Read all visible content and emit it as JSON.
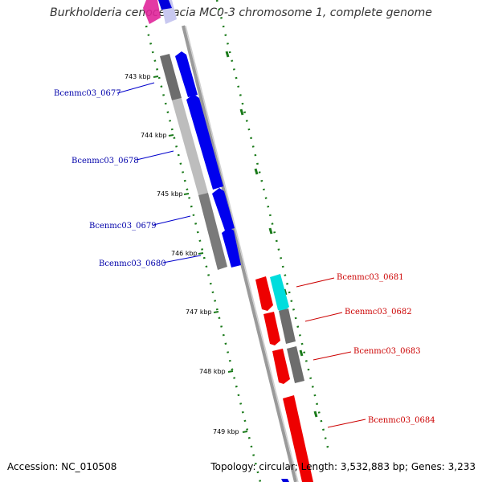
{
  "title": "Burkholderia cenocepacia MC0-3 chromosome 1, complete genome",
  "footer": {
    "accession": "Accession: NC_010508",
    "summary": "Topology: circular; Length: 3,532,883 bp; Genes: 3,233"
  },
  "colors": {
    "forward_strand": "#0000ee",
    "reverse_strand": "#ee0000",
    "axis": "#888888",
    "tick": "#1a7a1a",
    "forward_label": "#0000aa",
    "reverse_label": "#cc0000"
  },
  "ticks": [
    "743 kbp",
    "744 kbp",
    "745 kbp",
    "746 kbp",
    "747 kbp",
    "748 kbp",
    "749 kbp"
  ],
  "genes_left": [
    "Bcenmc03_0677",
    "Bcenmc03_0678",
    "Bcenmc03_0679",
    "Bcenmc03_0680"
  ],
  "genes_right": [
    "Bcenmc03_0681",
    "Bcenmc03_0682",
    "Bcenmc03_0683",
    "Bcenmc03_0684"
  ]
}
